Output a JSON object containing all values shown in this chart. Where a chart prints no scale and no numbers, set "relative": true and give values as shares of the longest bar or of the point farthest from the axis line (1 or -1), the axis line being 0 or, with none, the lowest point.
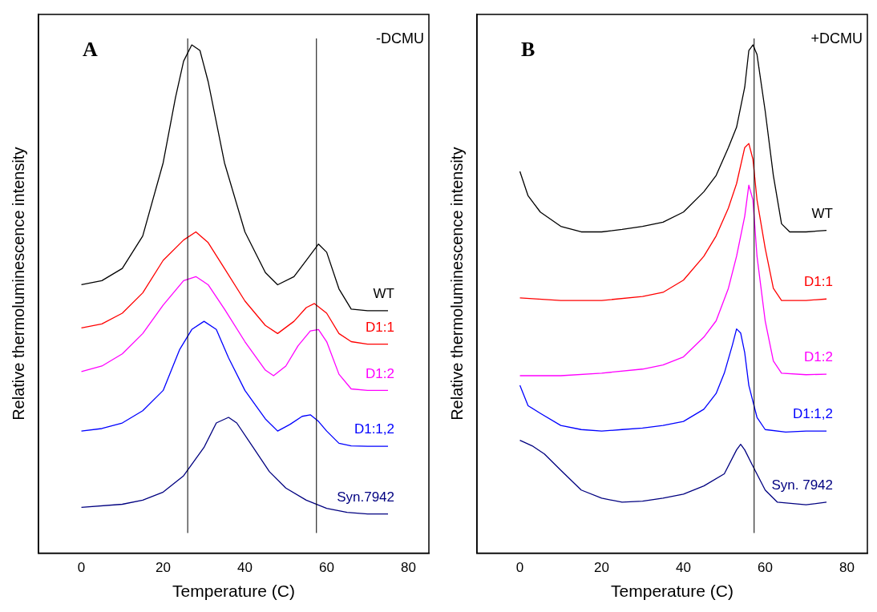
{
  "chart_data": [
    {
      "type": "line",
      "relative": true,
      "xlabel": "Temperature (C)",
      "ylabel": "Relative thermoluminescence intensity",
      "annotations": [
        "A",
        "-DCMU"
      ],
      "xlim": [
        -10.5,
        85
      ],
      "xticks": [
        0,
        20,
        40,
        60,
        80
      ],
      "tick_labels": "x",
      "legend": false,
      "grid": false,
      "marker": "none",
      "line_style": "solid",
      "ref_lines": [
        {
          "axis": "x",
          "value": 26,
          "color": "#000000"
        },
        {
          "axis": "x",
          "value": 57.5,
          "color": "#000000"
        }
      ],
      "series": [
        {
          "name": "WT",
          "color": "#000000",
          "x": [
            0,
            5,
            10,
            15,
            20,
            23,
            25,
            27,
            29,
            31,
            35,
            40,
            45,
            48,
            52,
            55,
            58,
            60,
            63,
            66,
            70,
            75
          ],
          "values": [
            0.528,
            0.536,
            0.56,
            0.624,
            0.768,
            0.896,
            0.968,
            1,
            0.989,
            0.928,
            0.768,
            0.632,
            0.552,
            0.528,
            0.544,
            0.576,
            0.608,
            0.592,
            0.52,
            0.48,
            0.477,
            0.477
          ]
        },
        {
          "name": "D1:1",
          "color": "#ff0000",
          "x": [
            0,
            5,
            10,
            15,
            20,
            25,
            28,
            31,
            35,
            40,
            45,
            48,
            52,
            55,
            57,
            60,
            63,
            66,
            70,
            75
          ],
          "values": [
            0.443,
            0.451,
            0.472,
            0.512,
            0.576,
            0.616,
            0.632,
            0.611,
            0.56,
            0.496,
            0.448,
            0.432,
            0.456,
            0.483,
            0.491,
            0.472,
            0.432,
            0.416,
            0.411,
            0.411
          ]
        },
        {
          "name": "D1:2",
          "color": "#ff00ff",
          "x": [
            0,
            5,
            10,
            15,
            20,
            25,
            28,
            31,
            35,
            40,
            45,
            47,
            50,
            53,
            56,
            58,
            60,
            63,
            66,
            70,
            75
          ],
          "values": [
            0.357,
            0.368,
            0.392,
            0.432,
            0.488,
            0.536,
            0.544,
            0.528,
            0.48,
            0.416,
            0.36,
            0.349,
            0.368,
            0.408,
            0.437,
            0.44,
            0.416,
            0.352,
            0.323,
            0.32,
            0.32
          ]
        },
        {
          "name": "D1:1,2",
          "color": "#0000ff",
          "x": [
            0,
            5,
            10,
            15,
            20,
            24,
            27,
            30,
            33,
            36,
            40,
            45,
            48,
            51,
            54,
            56,
            58,
            60,
            63,
            66,
            70,
            75
          ],
          "values": [
            0.24,
            0.245,
            0.256,
            0.28,
            0.32,
            0.4,
            0.44,
            0.456,
            0.44,
            0.384,
            0.32,
            0.264,
            0.24,
            0.253,
            0.269,
            0.272,
            0.259,
            0.24,
            0.216,
            0.211,
            0.21,
            0.21
          ]
        },
        {
          "name": "Syn.7942",
          "color": "#000080",
          "x": [
            0,
            10,
            15,
            20,
            25,
            30,
            33,
            36,
            38,
            42,
            46,
            50,
            55,
            60,
            65,
            70,
            75
          ],
          "values": [
            0.09,
            0.096,
            0.104,
            0.12,
            0.152,
            0.208,
            0.256,
            0.267,
            0.256,
            0.208,
            0.16,
            0.128,
            0.104,
            0.088,
            0.08,
            0.077,
            0.077
          ]
        }
      ]
    },
    {
      "type": "line",
      "relative": true,
      "xlabel": "Temperature (C)",
      "ylabel": "Relative thermoluminescence intensity",
      "annotations": [
        "B",
        "+DCMU"
      ],
      "xlim": [
        -10.5,
        85
      ],
      "xticks": [
        0,
        20,
        40,
        60,
        80
      ],
      "tick_labels": "x",
      "legend": false,
      "grid": false,
      "marker": "none",
      "line_style": "solid",
      "ref_lines": [
        {
          "axis": "x",
          "value": 57.3,
          "color": "#000000"
        }
      ],
      "series": [
        {
          "name": "WT",
          "color": "#000000",
          "x": [
            0,
            2,
            5,
            10,
            15,
            20,
            25,
            30,
            35,
            40,
            45,
            48,
            51,
            53,
            55,
            56,
            57,
            58,
            60,
            62,
            64,
            66,
            70,
            75
          ],
          "values": [
            0.751,
            0.703,
            0.671,
            0.643,
            0.632,
            0.632,
            0.637,
            0.643,
            0.651,
            0.671,
            0.711,
            0.743,
            0.798,
            0.838,
            0.917,
            0.989,
            1,
            0.981,
            0.87,
            0.743,
            0.648,
            0.632,
            0.632,
            0.635
          ]
        },
        {
          "name": "D1:1",
          "color": "#ff0000",
          "x": [
            0,
            10,
            20,
            30,
            35,
            40,
            45,
            48,
            51,
            53,
            55,
            56,
            57,
            58,
            60,
            62,
            64,
            70,
            75
          ],
          "values": [
            0.502,
            0.497,
            0.497,
            0.505,
            0.513,
            0.537,
            0.584,
            0.624,
            0.679,
            0.727,
            0.798,
            0.806,
            0.775,
            0.695,
            0.6,
            0.521,
            0.497,
            0.497,
            0.5
          ]
        },
        {
          "name": "D1:2",
          "color": "#ff00ff",
          "x": [
            0,
            10,
            20,
            30,
            35,
            40,
            45,
            48,
            51,
            53,
            55,
            56,
            57,
            58,
            60,
            62,
            64,
            70,
            75
          ],
          "values": [
            0.349,
            0.349,
            0.354,
            0.362,
            0.37,
            0.386,
            0.425,
            0.457,
            0.521,
            0.584,
            0.663,
            0.724,
            0.695,
            0.584,
            0.457,
            0.378,
            0.354,
            0.351,
            0.352
          ]
        },
        {
          "name": "D1:1,2",
          "color": "#0000ff",
          "x": [
            0,
            2,
            5,
            10,
            15,
            20,
            25,
            30,
            35,
            40,
            45,
            48,
            50,
            52,
            53,
            54,
            55,
            56,
            58,
            60,
            65,
            70,
            75
          ],
          "values": [
            0.33,
            0.29,
            0.275,
            0.251,
            0.243,
            0.24,
            0.243,
            0.246,
            0.251,
            0.259,
            0.283,
            0.314,
            0.354,
            0.41,
            0.441,
            0.433,
            0.394,
            0.33,
            0.267,
            0.243,
            0.238,
            0.24,
            0.24
          ]
        },
        {
          "name": "Syn. 7942",
          "color": "#000080",
          "x": [
            0,
            3,
            6,
            10,
            15,
            20,
            25,
            30,
            35,
            40,
            45,
            50,
            53,
            54,
            55,
            57,
            60,
            63,
            70,
            75
          ],
          "values": [
            0.222,
            0.211,
            0.195,
            0.163,
            0.124,
            0.108,
            0.1,
            0.102,
            0.108,
            0.116,
            0.132,
            0.156,
            0.203,
            0.214,
            0.203,
            0.171,
            0.124,
            0.1,
            0.095,
            0.1
          ]
        }
      ]
    }
  ]
}
